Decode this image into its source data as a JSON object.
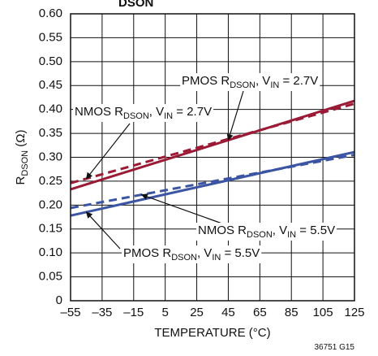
{
  "chart_data": {
    "type": "line",
    "title": "",
    "header_fragment": "DSON",
    "xlabel": "TEMPERATURE (°C)",
    "ylabel": {
      "main": "R",
      "sub": "DSON",
      "unit": " (Ω)"
    },
    "xlim": [
      -55,
      125
    ],
    "ylim": [
      0,
      0.6
    ],
    "x_ticks": [
      -55,
      -35,
      -15,
      5,
      25,
      45,
      65,
      85,
      105,
      125
    ],
    "x_tick_labels": [
      "–55",
      "–35",
      "–15",
      "5",
      "25",
      "45",
      "65",
      "85",
      "105",
      "125"
    ],
    "y_ticks": [
      0,
      0.05,
      0.1,
      0.15,
      0.2,
      0.25,
      0.3,
      0.35,
      0.4,
      0.45,
      0.5,
      0.55,
      0.6
    ],
    "y_tick_labels": [
      "0",
      "0.05",
      "0.10",
      "0.15",
      "0.20",
      "0.25",
      "0.30",
      "0.35",
      "0.40",
      "0.45",
      "0.50",
      "0.55",
      "0.60"
    ],
    "grid": true,
    "legend": "none",
    "x": [
      -55,
      125
    ],
    "series": [
      {
        "name": "PMOS RDSON, VIN = 2.7V",
        "values": [
          0.233,
          0.418
        ],
        "color": "#9b1b36",
        "dash": false
      },
      {
        "name": "NMOS RDSON, VIN = 2.7V",
        "values": [
          0.246,
          0.412
        ],
        "color": "#9b1b36",
        "dash": true
      },
      {
        "name": "NMOS RDSON, VIN = 5.5V",
        "values": [
          0.194,
          0.305
        ],
        "color": "#3b55a3",
        "dash": true
      },
      {
        "name": "PMOS RDSON, VIN = 5.5V",
        "values": [
          0.178,
          0.311
        ],
        "color": "#3b55a3",
        "dash": false
      }
    ],
    "annotations": [
      {
        "main": "PMOS R",
        "sub1": "DSON",
        "mid": ", V",
        "sub2": "IN",
        "tail": " = 2.7V",
        "series": 0,
        "arrow_x": 45
      },
      {
        "main": "NMOS R",
        "sub1": "DSON",
        "mid": ", V",
        "sub2": "IN",
        "tail": " = 2.7V",
        "series": 1,
        "arrow_x": -45
      },
      {
        "main": "NMOS R",
        "sub1": "DSON",
        "mid": ", V",
        "sub2": "IN",
        "tail": " = 5.5V",
        "series": 2,
        "arrow_x": -10
      },
      {
        "main": "PMOS R",
        "sub1": "DSON",
        "mid": ", V",
        "sub2": "IN",
        "tail": " = 5.5V",
        "series": 3,
        "arrow_x": -45
      }
    ],
    "figure_id": "36751 G15"
  }
}
